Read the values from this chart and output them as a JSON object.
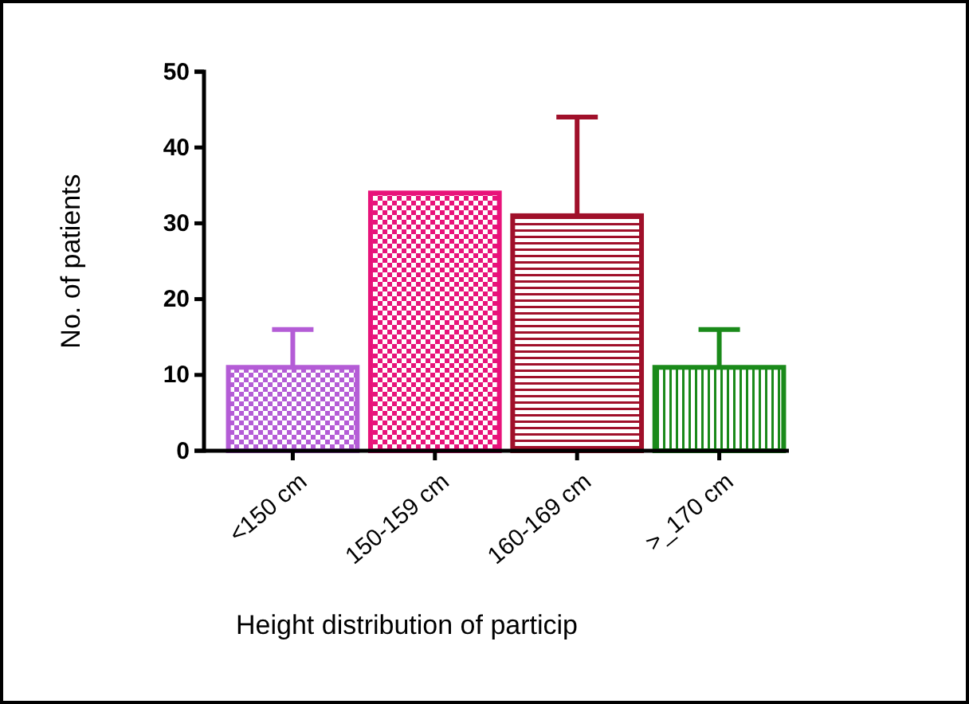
{
  "chart_data": {
    "type": "bar",
    "categories": [
      "<150 cm",
      "150-159 cm",
      "160-169 cm",
      ">_170 cm"
    ],
    "values": [
      11,
      34,
      31,
      11
    ],
    "colors": [
      "#b45cd6",
      "#e8137a",
      "#a0102a",
      "#1a8a1a"
    ],
    "errors": [
      5,
      null,
      13,
      5
    ],
    "ylabel": "No. of patients",
    "xlabel": "Height distribution of particip",
    "ylim": [
      0,
      50
    ],
    "yticks": [
      0,
      10,
      20,
      30,
      40,
      50
    ]
  }
}
